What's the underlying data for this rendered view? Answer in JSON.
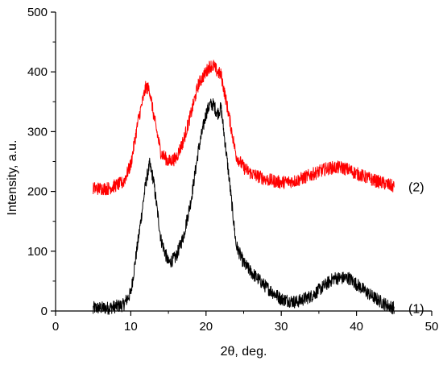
{
  "chart_data": {
    "type": "line",
    "title": "",
    "xlabel": "2θ, deg.",
    "ylabel": "Intensity, a.u.",
    "xlim": [
      0,
      50
    ],
    "ylim": [
      0,
      500
    ],
    "x_ticks": [
      "0",
      "10",
      "20",
      "30",
      "40",
      "50"
    ],
    "y_ticks": [
      "0",
      "100",
      "200",
      "300",
      "400",
      "500"
    ],
    "grid": false,
    "legend": "none",
    "series": [
      {
        "name": "(1)",
        "color": "#000000",
        "x": [
          5,
          7,
          9,
          10,
          11,
          12,
          12.5,
          13,
          14,
          15,
          16,
          17,
          18,
          19,
          20,
          20.5,
          21,
          21.5,
          22,
          23,
          24,
          25,
          26,
          28,
          30,
          32,
          34,
          36,
          37,
          38,
          39,
          40,
          42,
          44,
          45
        ],
        "values": [
          5,
          5,
          10,
          30,
          120,
          215,
          245,
          220,
          120,
          80,
          90,
          125,
          185,
          270,
          330,
          345,
          345,
          330,
          340,
          230,
          110,
          80,
          65,
          40,
          20,
          15,
          25,
          45,
          55,
          55,
          55,
          45,
          25,
          10,
          5
        ]
      },
      {
        "name": "(2)",
        "color": "#ff0000",
        "x": [
          5,
          7,
          9,
          10,
          11,
          12,
          12.5,
          13,
          14,
          15,
          16,
          17,
          18,
          19,
          20,
          20.5,
          21,
          21.5,
          22,
          23,
          24,
          25,
          26,
          28,
          30,
          32,
          34,
          36,
          37,
          38,
          39,
          40,
          42,
          44,
          45
        ],
        "values": [
          205,
          205,
          215,
          245,
          320,
          375,
          370,
          330,
          265,
          250,
          255,
          285,
          330,
          380,
          400,
          410,
          410,
          400,
          395,
          330,
          260,
          240,
          230,
          220,
          215,
          218,
          228,
          238,
          240,
          240,
          236,
          230,
          220,
          212,
          208
        ]
      }
    ]
  }
}
